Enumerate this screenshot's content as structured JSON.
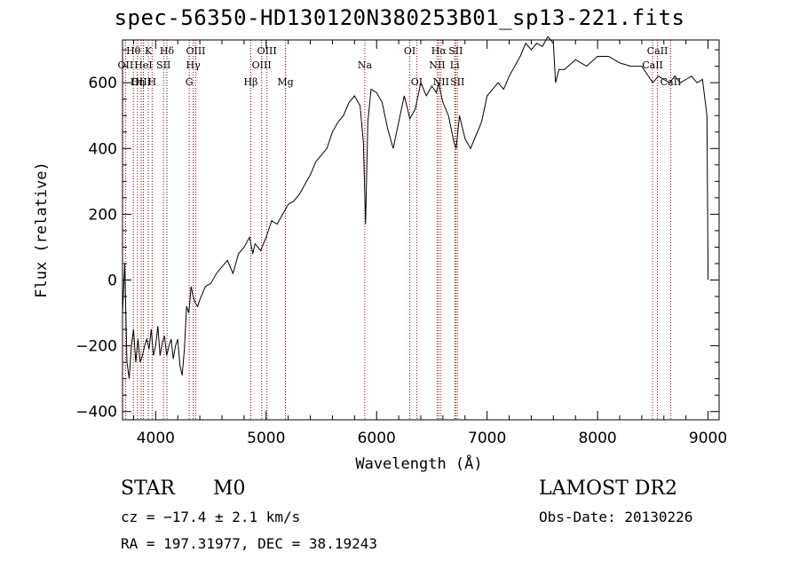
{
  "chart_data": {
    "type": "line",
    "title": "spec-56350-HD130120N380253B01_sp13-221.fits",
    "xlabel": "Wavelength (Å)",
    "ylabel": "Flux (relative)",
    "xlim": [
      3700,
      9100
    ],
    "ylim": [
      -425,
      730
    ],
    "x_ticks": [
      4000,
      5000,
      6000,
      7000,
      8000,
      9000
    ],
    "y_ticks": [
      -400,
      -200,
      0,
      200,
      400,
      600
    ],
    "grid": false,
    "series": [
      {
        "x": [
          3700,
          3720,
          3740,
          3760,
          3780,
          3800,
          3820,
          3840,
          3860,
          3880,
          3900,
          3920,
          3940,
          3960,
          3980,
          4000,
          4020,
          4040,
          4060,
          4080,
          4100,
          4120,
          4140,
          4160,
          4180,
          4200,
          4220,
          4240,
          4260,
          4280,
          4300,
          4320,
          4340,
          4360,
          4380,
          4400,
          4450,
          4500,
          4550,
          4600,
          4650,
          4700,
          4750,
          4800,
          4850,
          4880,
          4900,
          4950,
          5000,
          5050,
          5100,
          5150,
          5200,
          5250,
          5300,
          5350,
          5400,
          5450,
          5500,
          5550,
          5600,
          5650,
          5700,
          5750,
          5800,
          5850,
          5880,
          5890,
          5900,
          5920,
          5950,
          6000,
          6050,
          6100,
          6150,
          6200,
          6250,
          6280,
          6300,
          6350,
          6400,
          6450,
          6500,
          6540,
          6563,
          6580,
          6600,
          6650,
          6700,
          6720,
          6750,
          6800,
          6850,
          6900,
          6950,
          7000,
          7050,
          7100,
          7150,
          7200,
          7250,
          7300,
          7350,
          7400,
          7450,
          7500,
          7550,
          7600,
          7620,
          7650,
          7700,
          7800,
          7900,
          8000,
          8100,
          8200,
          8300,
          8400,
          8500,
          8550,
          8600,
          8650,
          8700,
          8750,
          8800,
          8850,
          8900,
          8950,
          8990,
          9000
        ],
        "values": [
          -100,
          50,
          -250,
          -300,
          -200,
          -150,
          -250,
          -180,
          -250,
          -230,
          -200,
          -180,
          -210,
          -150,
          -230,
          -200,
          -140,
          -230,
          -190,
          -170,
          -230,
          -200,
          -180,
          -240,
          -200,
          -180,
          -260,
          -290,
          -210,
          -80,
          -100,
          -20,
          -50,
          -70,
          -80,
          -60,
          -20,
          -10,
          20,
          40,
          60,
          20,
          80,
          100,
          130,
          80,
          110,
          90,
          130,
          180,
          170,
          200,
          230,
          240,
          260,
          290,
          320,
          360,
          380,
          400,
          450,
          480,
          500,
          540,
          560,
          530,
          420,
          300,
          170,
          480,
          580,
          570,
          540,
          460,
          400,
          480,
          560,
          520,
          490,
          520,
          600,
          560,
          590,
          570,
          600,
          570,
          540,
          500,
          420,
          400,
          500,
          430,
          400,
          440,
          480,
          560,
          580,
          600,
          580,
          620,
          650,
          680,
          720,
          700,
          720,
          710,
          740,
          720,
          600,
          640,
          640,
          670,
          650,
          680,
          680,
          660,
          650,
          650,
          600,
          620,
          610,
          600,
          620,
          600,
          610,
          620,
          600,
          610,
          500,
          0
        ]
      }
    ],
    "lines": [
      {
        "label": "Hθ",
        "x": 3798,
        "row": 1
      },
      {
        "label": "OII",
        "x": 3727,
        "row": 2
      },
      {
        "label": "OIII",
        "x": 3869,
        "row": 3
      },
      {
        "label": "Hη",
        "x": 3835,
        "row": 3
      },
      {
        "label": "K",
        "x": 3934,
        "row": 1
      },
      {
        "label": "HeI",
        "x": 3889,
        "row": 2
      },
      {
        "label": "SII",
        "x": 4072,
        "row": 2
      },
      {
        "label": "H",
        "x": 3968,
        "row": 3
      },
      {
        "label": "Hδ",
        "x": 4102,
        "row": 1
      },
      {
        "label": "OIII",
        "x": 4363,
        "row": 1
      },
      {
        "label": "Hγ",
        "x": 4340,
        "row": 2
      },
      {
        "label": "G",
        "x": 4304,
        "row": 3
      },
      {
        "label": "Hβ",
        "x": 4861,
        "row": 3
      },
      {
        "label": "OIII",
        "x": 5007,
        "row": 1
      },
      {
        "label": "OIII",
        "x": 4959,
        "row": 2
      },
      {
        "label": "Mg",
        "x": 5175,
        "row": 3
      },
      {
        "label": "Na",
        "x": 5893,
        "row": 2
      },
      {
        "label": "OI",
        "x": 6300,
        "row": 1
      },
      {
        "label": "OI",
        "x": 6363,
        "row": 3
      },
      {
        "label": "Hα",
        "x": 6563,
        "row": 1
      },
      {
        "label": "SII",
        "x": 6716,
        "row": 1
      },
      {
        "label": "NII",
        "x": 6548,
        "row": 2
      },
      {
        "label": "Li",
        "x": 6707,
        "row": 2
      },
      {
        "label": "NII",
        "x": 6583,
        "row": 3
      },
      {
        "label": "SII",
        "x": 6731,
        "row": 3
      },
      {
        "label": "CaII",
        "x": 8542,
        "row": 1
      },
      {
        "label": "CaII",
        "x": 8498,
        "row": 2
      },
      {
        "label": "CaII",
        "x": 8662,
        "row": 3
      }
    ],
    "line_color": "#8b0000"
  },
  "info": {
    "class": "STAR",
    "subclass": "M0",
    "survey": "LAMOST DR2",
    "cz": "cz = −17.4 ± 2.1 km/s",
    "obs_date": "Obs-Date: 20130226",
    "radec": "RA = 197.31977, DEC =  38.19243"
  }
}
